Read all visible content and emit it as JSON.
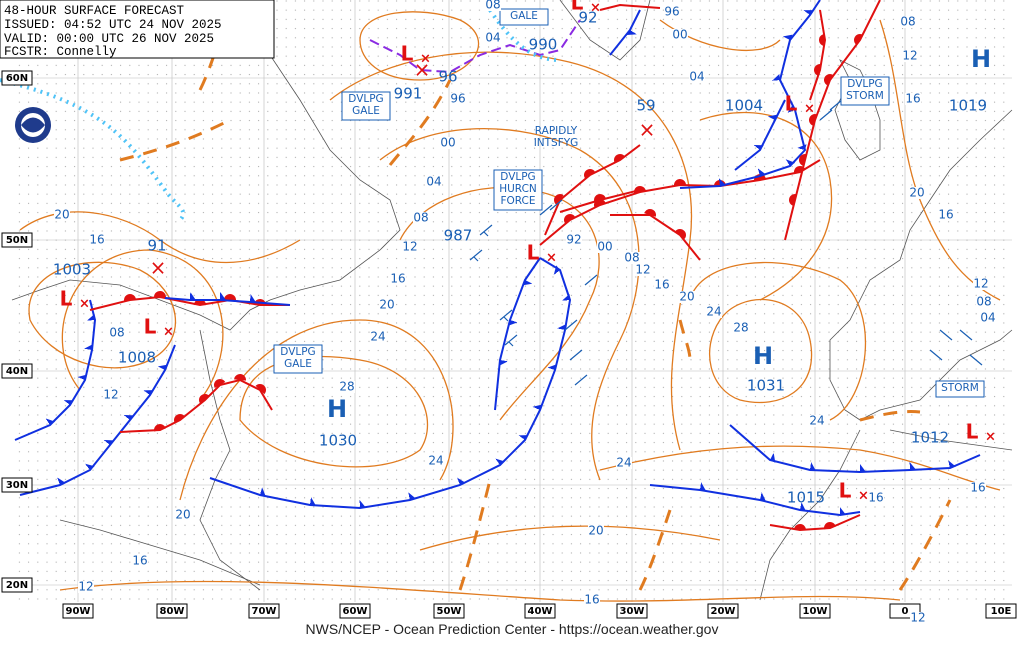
{
  "header": {
    "lines": [
      "48-HOUR SURFACE FORECAST",
      "ISSUED: 04:52 UTC 24 NOV 2025",
      "VALID: 00:00 UTC 26 NOV 2025",
      "FCSTR: Connelly"
    ]
  },
  "footer": "NWS/NCEP - Ocean Prediction Center - https://ocean.weather.gov",
  "lat_labels": [
    "60N",
    "50N",
    "40N",
    "30N",
    "20N"
  ],
  "lon_labels": [
    "90W",
    "80W",
    "70W",
    "60W",
    "50W",
    "40W",
    "30W",
    "20W",
    "10W",
    "0",
    "10E"
  ],
  "centers": [
    {
      "symbol": "L",
      "pressure": "1003"
    },
    {
      "symbol": "L",
      "pressure": "1008"
    },
    {
      "pressure": "91"
    },
    {
      "symbol": "L",
      "pressure": "987"
    },
    {
      "symbol": "L",
      "pressure": "991"
    },
    {
      "pressure": "96"
    },
    {
      "pressure": "990"
    },
    {
      "symbol": "L",
      "pressure": "92"
    },
    {
      "pressure": "59"
    },
    {
      "symbol": "L",
      "pressure": "1004"
    },
    {
      "symbol": "H",
      "pressure": "1019"
    },
    {
      "symbol": "H",
      "pressure": "1031"
    },
    {
      "symbol": "H",
      "pressure": "1030"
    },
    {
      "symbol": "L",
      "pressure": "1012"
    },
    {
      "symbol": "L",
      "pressure": "1015"
    }
  ],
  "annotations": [
    {
      "lines": [
        "DVLPG",
        "GALE"
      ],
      "boxed": true
    },
    {
      "lines": [
        "GALE"
      ],
      "boxed": true
    },
    {
      "lines": [
        "DVLPG",
        "STORM"
      ],
      "boxed": true
    },
    {
      "lines": [
        "DVLPG",
        "HURCN",
        "FORCE"
      ],
      "boxed": true
    },
    {
      "lines": [
        "RAPIDLY",
        "INTSFYG"
      ],
      "boxed": false
    },
    {
      "lines": [
        "DVLPG",
        "GALE"
      ],
      "boxed": true
    },
    {
      "lines": [
        "STORM"
      ],
      "boxed": true
    }
  ],
  "isobar_labels": [
    "08",
    "04",
    "96",
    "00",
    "08",
    "12",
    "16",
    "04",
    "00",
    "96",
    "04",
    "08",
    "12",
    "16",
    "20",
    "24",
    "28",
    "20",
    "16",
    "08",
    "12",
    "92",
    "00",
    "08",
    "12",
    "16",
    "20",
    "24",
    "28",
    "20",
    "16",
    "12",
    "08",
    "04",
    "24",
    "24",
    "24",
    "20",
    "16",
    "12",
    "20",
    "16",
    "16",
    "16",
    "12"
  ]
}
